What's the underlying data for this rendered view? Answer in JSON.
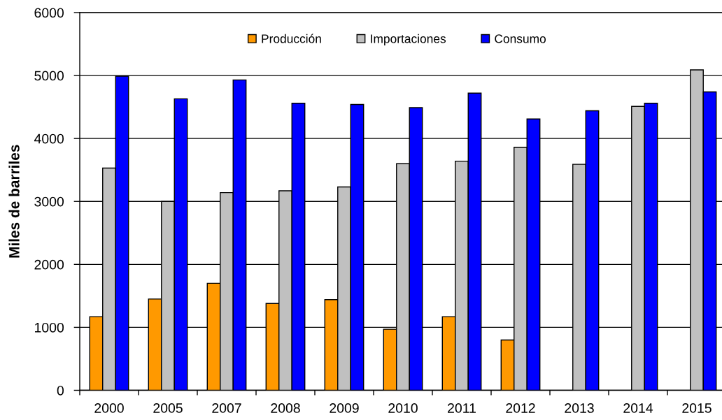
{
  "chart_data": {
    "type": "bar",
    "ylabel": "Miles de barriles",
    "categories": [
      "2000",
      "2005",
      "2007",
      "2008",
      "2009",
      "2010",
      "2011",
      "2012",
      "2013",
      "2014",
      "2015"
    ],
    "series": [
      {
        "name": "Producción",
        "color": "#ff9900",
        "values": [
          1170,
          1450,
          1700,
          1380,
          1440,
          970,
          1170,
          800,
          null,
          null,
          null
        ]
      },
      {
        "name": "Importaciones",
        "color": "#c0c0c0",
        "values": [
          3530,
          3000,
          3140,
          3170,
          3230,
          3600,
          3640,
          3860,
          3590,
          4510,
          5090
        ]
      },
      {
        "name": "Consumo",
        "color": "#0000ff",
        "values": [
          4990,
          4630,
          4930,
          4560,
          4540,
          4490,
          4720,
          4310,
          4440,
          4560,
          4740
        ]
      }
    ],
    "ylim": [
      0,
      6000
    ],
    "yticks": [
      0,
      1000,
      2000,
      3000,
      4000,
      5000,
      6000
    ],
    "grid": "y",
    "legend": "top"
  }
}
